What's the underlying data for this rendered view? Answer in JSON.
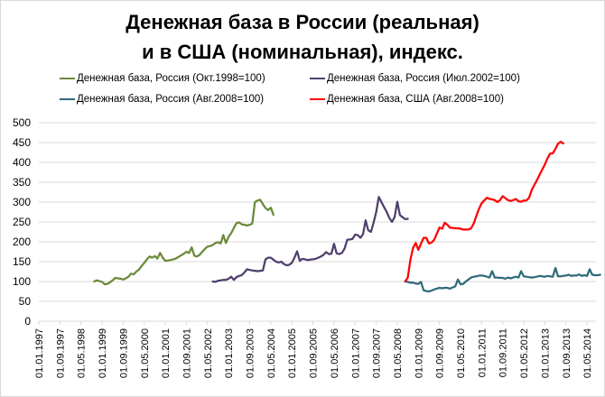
{
  "title_line1": "Денежная база в России (реальная)",
  "title_line2": "и в США (номинальная), индекс.",
  "legend": [
    {
      "label": "Денежная база, Россия (Окт.1998=100)",
      "color": "#6a8a3a"
    },
    {
      "label": "Денежная база, Россия (Июл.2002=100)",
      "color": "#4f3f6e"
    },
    {
      "label": "Денежная база, Россия (Авг.2008=100)",
      "color": "#2f6b7a"
    },
    {
      "label": "Денежная база, США (Авг.2008=100)",
      "color": "#ff0000"
    }
  ],
  "chart_data": {
    "type": "line",
    "title": "Денежная база в России (реальная) и в США (номинальная), индекс.",
    "xlabel": "",
    "ylabel": "",
    "ylim": [
      0,
      500
    ],
    "yticks": [
      0,
      50,
      100,
      150,
      200,
      250,
      300,
      350,
      400,
      450,
      500
    ],
    "xticks": [
      "01.01.1997",
      "01.09.1997",
      "01.05.1998",
      "01.01.1999",
      "01.09.1999",
      "01.05.2000",
      "01.01.2001",
      "01.09.2001",
      "01.05.2002",
      "01.01.2003",
      "01.09.2003",
      "01.05.2004",
      "01.01.2005",
      "01.09.2005",
      "01.05.2006",
      "01.01.2007",
      "01.09.2007",
      "01.05.2008",
      "01.01.2009",
      "01.09.2009",
      "01.05.2010",
      "01.01.2011",
      "01.09.2011",
      "01.05.2012",
      "01.01.2013",
      "01.09.2013",
      "01.05.2014"
    ],
    "grid": true,
    "legend_position": "top",
    "x_unit": "months since 01.1997",
    "series": [
      {
        "name": "Денежная база, Россия (Окт.1998=100)",
        "color": "#6a8a3a",
        "start_month": 21,
        "values": [
          100,
          103,
          101,
          99,
          93,
          94,
          98,
          103,
          109,
          108,
          107,
          105,
          108,
          112,
          120,
          118,
          125,
          130,
          139,
          147,
          156,
          163,
          160,
          164,
          158,
          172,
          160,
          152,
          153,
          154,
          156,
          158,
          162,
          166,
          170,
          175,
          172,
          186,
          165,
          163,
          167,
          175,
          182,
          188,
          189,
          192,
          197,
          199,
          196,
          217,
          197,
          213,
          222,
          235,
          247,
          249,
          244,
          243,
          241,
          243,
          246,
          300,
          304,
          306,
          295,
          285,
          280,
          286,
          268
        ]
      },
      {
        "name": "Денежная база, Россия (Июл.2002=100)",
        "color": "#4f3f6e",
        "start_month": 66,
        "values": [
          100,
          99,
          102,
          103,
          104,
          104,
          107,
          112,
          104,
          111,
          114,
          116,
          123,
          131,
          129,
          128,
          127,
          126,
          127,
          128,
          156,
          160,
          160,
          155,
          150,
          148,
          150,
          144,
          141,
          142,
          147,
          160,
          176,
          152,
          157,
          156,
          154,
          155,
          156,
          157,
          160,
          163,
          167,
          174,
          169,
          170,
          195,
          171,
          169,
          172,
          183,
          205,
          206,
          207,
          218,
          217,
          210,
          219,
          254,
          229,
          225,
          248,
          275,
          313,
          300,
          287,
          275,
          260,
          250,
          262,
          301,
          267,
          262,
          257,
          258
        ]
      },
      {
        "name": "Денежная база, Россия (Авг.2008=100)",
        "color": "#2f6b7a",
        "start_month": 139,
        "values": [
          100,
          99,
          97,
          97,
          95,
          94,
          99,
          78,
          76,
          75,
          77,
          80,
          82,
          84,
          83,
          84,
          84,
          82,
          85,
          88,
          105,
          93,
          94,
          100,
          105,
          110,
          112,
          113,
          115,
          115,
          114,
          112,
          110,
          126,
          110,
          110,
          109,
          109,
          107,
          110,
          108,
          110,
          112,
          110,
          126,
          113,
          112,
          111,
          110,
          111,
          112,
          114,
          113,
          112,
          114,
          113,
          112,
          134,
          113,
          113,
          114,
          115,
          117,
          114,
          115,
          115,
          118,
          114,
          116,
          114,
          131,
          117,
          116,
          116,
          117
        ]
      },
      {
        "name": "Денежная база, США (Авг.2008=100)",
        "color": "#ff0000",
        "start_month": 139,
        "values": [
          100,
          110,
          155,
          185,
          197,
          180,
          195,
          210,
          210,
          196,
          198,
          205,
          220,
          236,
          233,
          248,
          243,
          236,
          235,
          234,
          234,
          233,
          231,
          231,
          231,
          234,
          246,
          265,
          283,
          297,
          304,
          311,
          308,
          307,
          305,
          300,
          305,
          315,
          310,
          305,
          303,
          305,
          308,
          302,
          301,
          304,
          304,
          311,
          330,
          343,
          355,
          369,
          382,
          395,
          410,
          422,
          423,
          434,
          447,
          452,
          448
        ]
      }
    ]
  }
}
